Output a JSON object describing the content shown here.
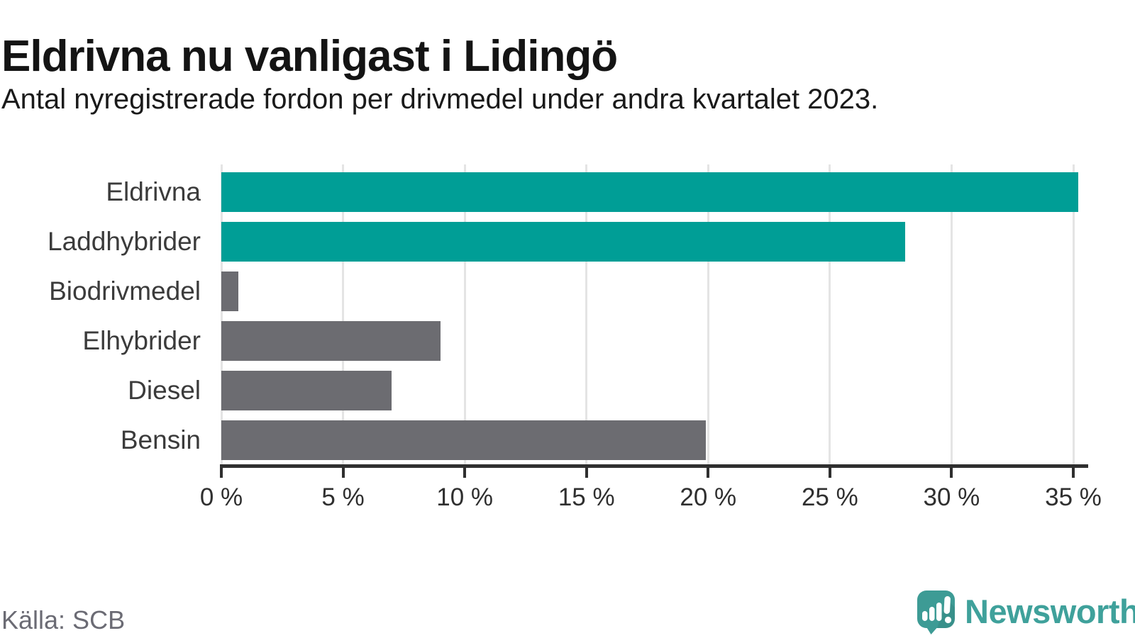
{
  "header": {
    "title": "Eldrivna nu vanligast i Lidingö",
    "subtitle": "Antal nyregistrerade fordon per drivmedel under andra kvartalet 2023."
  },
  "chart_data": {
    "type": "bar",
    "orientation": "horizontal",
    "title": "Eldrivna nu vanligast i Lidingö",
    "subtitle": "Antal nyregistrerade fordon per drivmedel under andra kvartalet 2023.",
    "categories": [
      "Eldrivna",
      "Laddhybrider",
      "Biodrivmedel",
      "Elhybrider",
      "Diesel",
      "Bensin"
    ],
    "values": [
      35.2,
      28.1,
      0.7,
      9.0,
      7.0,
      19.9
    ],
    "unit": "%",
    "xlim": [
      0,
      35
    ],
    "x_ticks": [
      0,
      5,
      10,
      15,
      20,
      25,
      30,
      35
    ],
    "x_tick_format": "{v} %",
    "grid": true,
    "legend": "none",
    "bar_color_keys": [
      "highlight",
      "highlight",
      "base",
      "base",
      "base",
      "base"
    ],
    "colors": {
      "highlight": "#009e96",
      "base": "#6c6c71"
    }
  },
  "footer": {
    "source": "Källa: SCB",
    "brand": "Newsworthy",
    "brand_color": "#3fa19b",
    "logo_color": "#3d9b95"
  }
}
